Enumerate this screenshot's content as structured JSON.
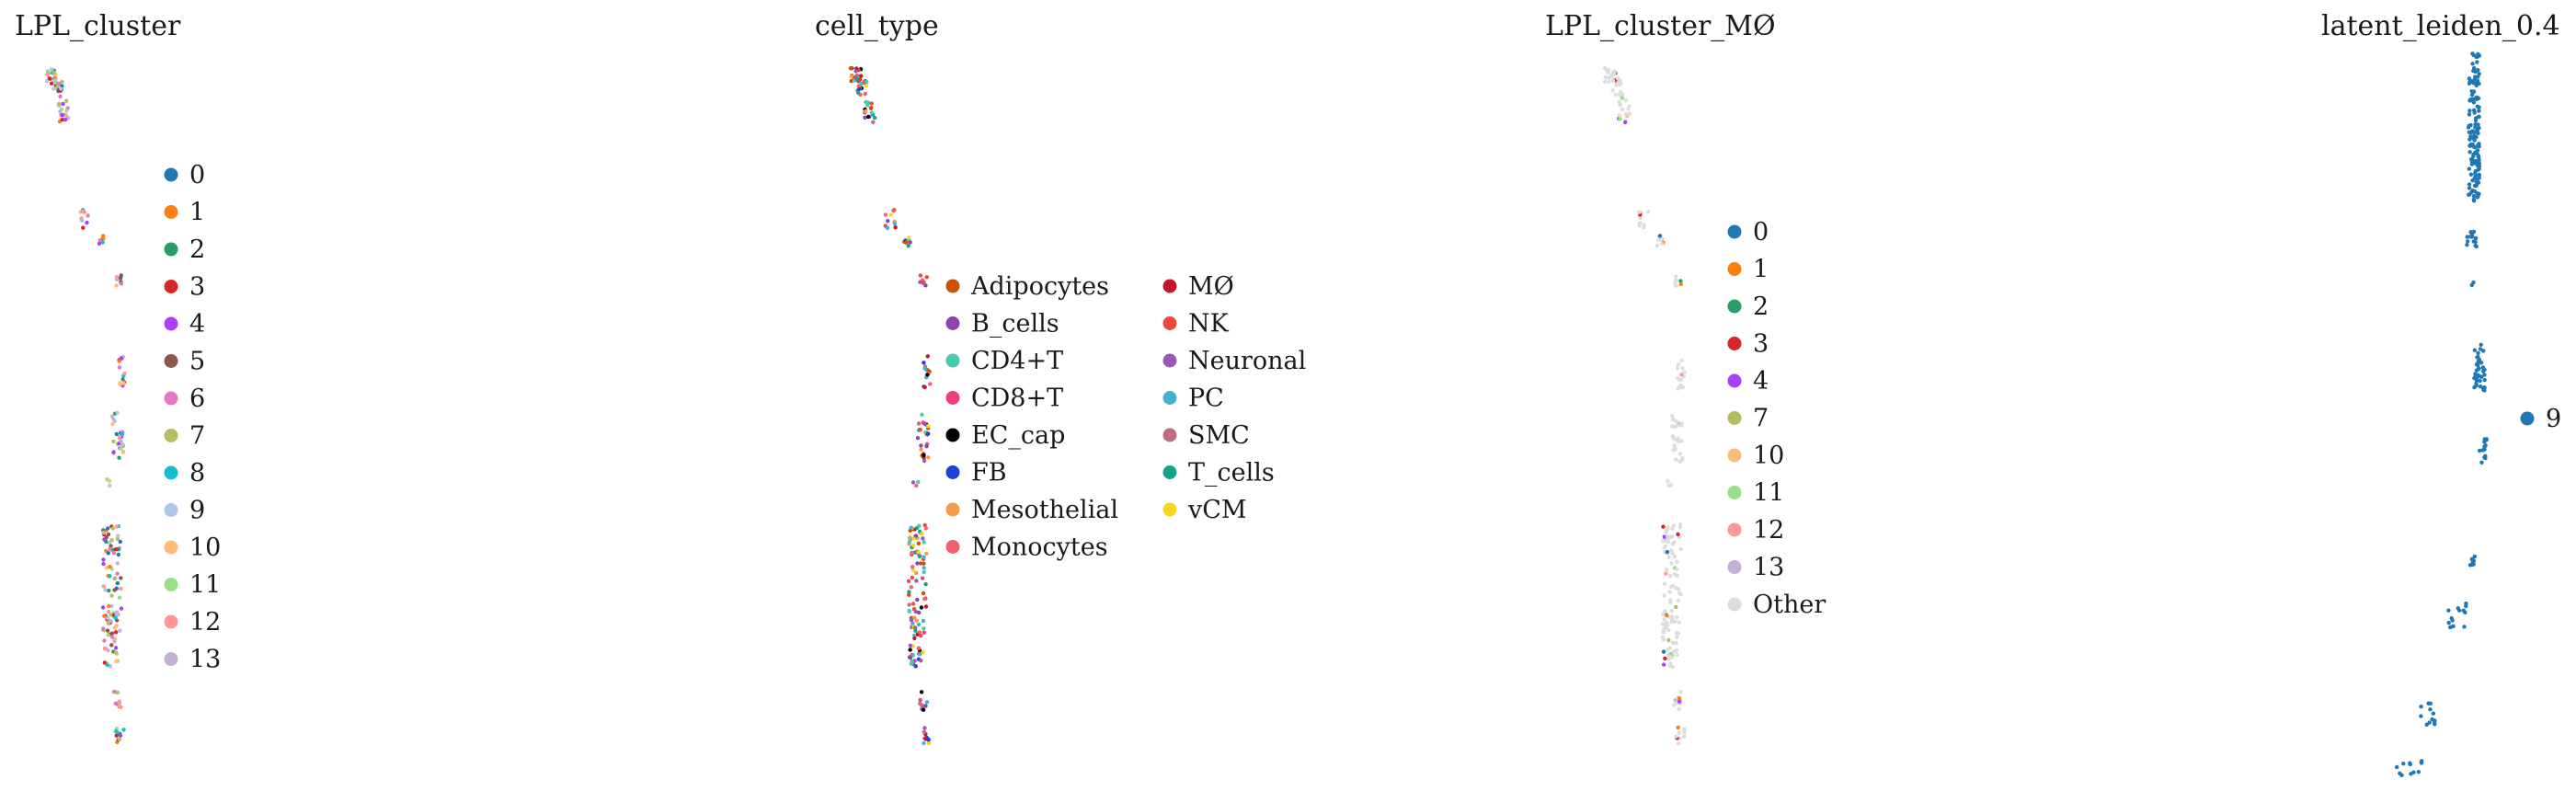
{
  "chart_data": [
    {
      "type": "scatter",
      "title": "LPL_cluster",
      "xlabel": "",
      "ylabel": "",
      "grid": false,
      "legend_position": "right",
      "legend": [
        {
          "label": "0",
          "color": "#1f77b4"
        },
        {
          "label": "1",
          "color": "#ff7f0e"
        },
        {
          "label": "2",
          "color": "#279e68"
        },
        {
          "label": "3",
          "color": "#d62728"
        },
        {
          "label": "4",
          "color": "#aa40fc"
        },
        {
          "label": "5",
          "color": "#8c564b"
        },
        {
          "label": "6",
          "color": "#e377c2"
        },
        {
          "label": "7",
          "color": "#b5bd61"
        },
        {
          "label": "8",
          "color": "#17becf"
        },
        {
          "label": "9",
          "color": "#aec7e8"
        },
        {
          "label": "10",
          "color": "#ffbb78"
        },
        {
          "label": "11",
          "color": "#98df8a"
        },
        {
          "label": "12",
          "color": "#ff9896"
        },
        {
          "label": "13",
          "color": "#c5b0d5"
        }
      ]
    },
    {
      "type": "scatter",
      "title": "cell_type",
      "xlabel": "",
      "ylabel": "",
      "grid": false,
      "legend_position": "right",
      "legend_columns": 2,
      "legend": [
        {
          "label": "Adipocytes",
          "color": "#cc5200"
        },
        {
          "label": "B_cells",
          "color": "#8e44ad"
        },
        {
          "label": "CD4+T",
          "color": "#48c9b0"
        },
        {
          "label": "CD8+T",
          "color": "#ec407a"
        },
        {
          "label": "EC_cap",
          "color": "#000000"
        },
        {
          "label": "FB",
          "color": "#1f3fd6"
        },
        {
          "label": "Mesothelial",
          "color": "#f39c4a"
        },
        {
          "label": "Monocytes",
          "color": "#f06272"
        },
        {
          "label": "MØ",
          "color": "#c0182b"
        },
        {
          "label": "NK",
          "color": "#e74c3c"
        },
        {
          "label": "Neuronal",
          "color": "#9b59b6"
        },
        {
          "label": "PC",
          "color": "#45b1cf"
        },
        {
          "label": "SMC",
          "color": "#c06c84"
        },
        {
          "label": "T_cells",
          "color": "#16a085"
        },
        {
          "label": "vCM",
          "color": "#f7d61c"
        }
      ]
    },
    {
      "type": "scatter",
      "title": "LPL_cluster_MØ",
      "xlabel": "",
      "ylabel": "",
      "grid": false,
      "legend_position": "right",
      "legend": [
        {
          "label": "0",
          "color": "#1f77b4"
        },
        {
          "label": "1",
          "color": "#ff7f0e"
        },
        {
          "label": "2",
          "color": "#279e68"
        },
        {
          "label": "3",
          "color": "#d62728"
        },
        {
          "label": "4",
          "color": "#aa40fc"
        },
        {
          "label": "7",
          "color": "#b5bd61"
        },
        {
          "label": "10",
          "color": "#ffbb78"
        },
        {
          "label": "11",
          "color": "#98df8a"
        },
        {
          "label": "12",
          "color": "#ff9896"
        },
        {
          "label": "13",
          "color": "#c5b0d5"
        },
        {
          "label": "Other",
          "color": "#dddddd"
        }
      ]
    },
    {
      "type": "scatter",
      "title": "latent_leiden_0.4",
      "xlabel": "",
      "ylabel": "",
      "grid": false,
      "legend_position": "right",
      "legend": [
        {
          "label": "9",
          "color": "#1f77b4"
        }
      ]
    }
  ]
}
